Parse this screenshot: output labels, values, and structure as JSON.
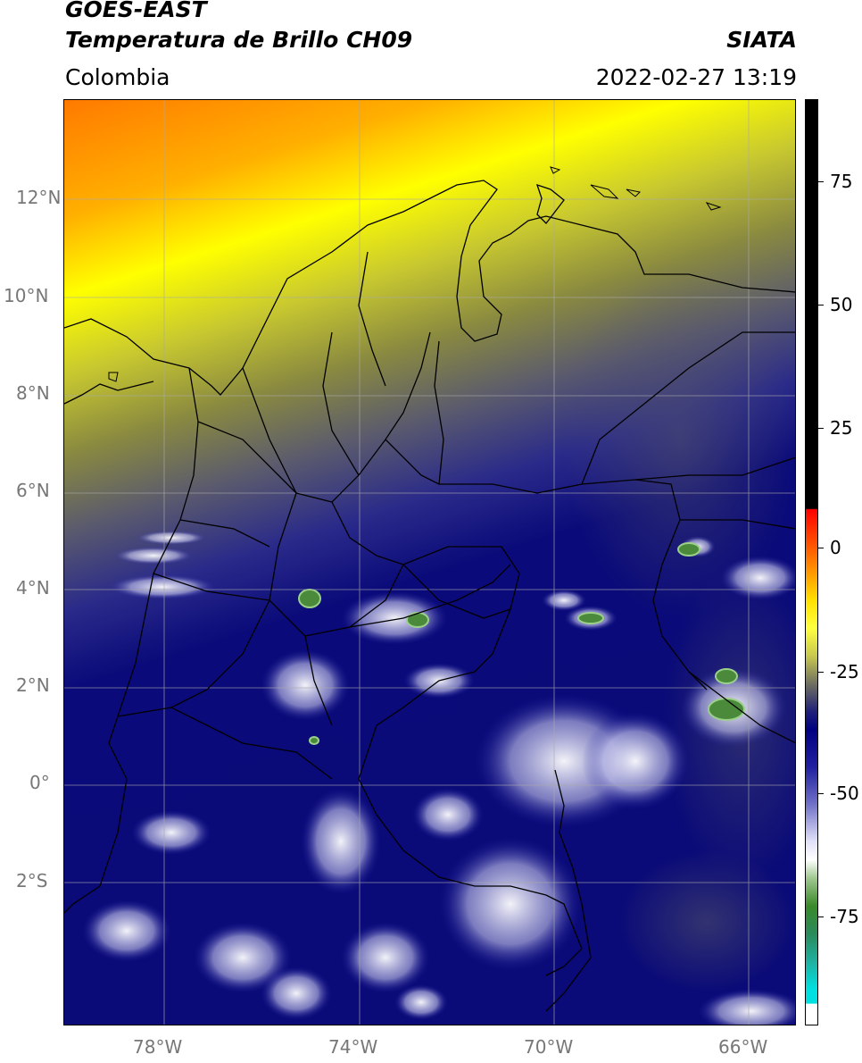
{
  "header": {
    "satellite": "GOES-EAST",
    "product": "Temperatura de Brillo CH09",
    "region": "Colombia",
    "organization": "SIATA",
    "datetime": "2022-02-27 13:19"
  },
  "map": {
    "lat_labels": [
      "12°N",
      "10°N",
      "8°N",
      "6°N",
      "4°N",
      "2°N",
      "0°",
      "2°S"
    ],
    "lon_labels": [
      "78°W",
      "74°W",
      "70°W",
      "66°W"
    ],
    "colors": {
      "orange": "#ff8c00",
      "yellow": "#ffff00",
      "olive": "#8a8a30",
      "gray": "#5a5a6e",
      "navy": "#0a0a7a",
      "white": "#ffffff",
      "green": "#3a8a2a",
      "grid": "#aaaaaa"
    }
  },
  "colorbar": {
    "labels": [
      "75",
      "50",
      "25",
      "0",
      "-25",
      "-50",
      "-75"
    ],
    "range": [
      -95,
      90
    ]
  }
}
